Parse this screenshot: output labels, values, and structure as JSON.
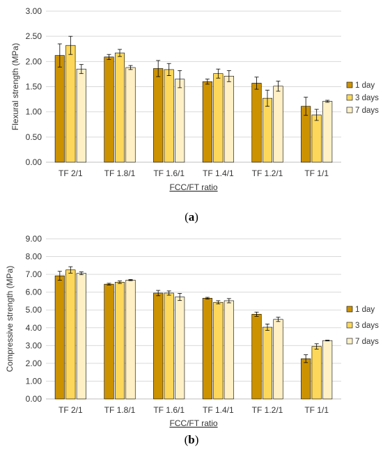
{
  "colors": {
    "day1": "#cc9200",
    "day3": "#fcd75a",
    "day7": "#fff0c6",
    "gridline": "#d9d9d9",
    "error": "#000000"
  },
  "chart_data": [
    {
      "type": "bar",
      "panel": "(a)",
      "panel_letter": "a",
      "ylabel": "Flexural strength (MPa)",
      "xlabel": "FCC/FT ratio",
      "ylim": [
        0,
        3.0
      ],
      "yticks": [
        "0.00",
        "0.50",
        "1.00",
        "1.50",
        "2.00",
        "2.50",
        "3.00"
      ],
      "grid": true,
      "legend_position": "right",
      "categories": [
        "TF 2/1",
        "TF 1.8/1",
        "TF 1.6/1",
        "TF 1.4/1",
        "TF 1.2/1",
        "TF 1/1"
      ],
      "series": [
        {
          "name": "1 day",
          "color_key": "day1",
          "values": [
            2.12,
            2.09,
            1.86,
            1.6,
            1.57,
            1.11
          ],
          "errors": [
            0.23,
            0.05,
            0.16,
            0.05,
            0.12,
            0.18
          ]
        },
        {
          "name": "3 days",
          "color_key": "day3",
          "values": [
            2.32,
            2.17,
            1.84,
            1.76,
            1.27,
            0.94
          ],
          "errors": [
            0.18,
            0.07,
            0.12,
            0.09,
            0.16,
            0.11
          ]
        },
        {
          "name": "7 days",
          "color_key": "day7",
          "values": [
            1.85,
            1.88,
            1.65,
            1.71,
            1.51,
            1.21
          ],
          "errors": [
            0.09,
            0.04,
            0.17,
            0.11,
            0.1,
            0.02
          ]
        }
      ]
    },
    {
      "type": "bar",
      "panel": "(b)",
      "panel_letter": "b",
      "ylabel": "Compressive strength (MPa)",
      "xlabel": "FCC/FT ratio",
      "ylim": [
        0,
        9.0
      ],
      "yticks": [
        "0.00",
        "1.00",
        "2.00",
        "3.00",
        "4.00",
        "5.00",
        "6.00",
        "7.00",
        "8.00",
        "9.00"
      ],
      "grid": true,
      "legend_position": "right",
      "categories": [
        "TF 2/1",
        "TF 1.8/1",
        "TF 1.6/1",
        "TF 1.4/1",
        "TF 1.2/1",
        "TF 1/1"
      ],
      "series": [
        {
          "name": "1 day",
          "color_key": "day1",
          "values": [
            6.92,
            6.45,
            5.95,
            5.66,
            4.76,
            2.26
          ],
          "errors": [
            0.25,
            0.05,
            0.15,
            0.05,
            0.12,
            0.22
          ]
        },
        {
          "name": "3 days",
          "color_key": "day3",
          "values": [
            7.25,
            6.56,
            5.95,
            5.43,
            4.03,
            2.95
          ],
          "errors": [
            0.18,
            0.07,
            0.12,
            0.09,
            0.18,
            0.15
          ]
        },
        {
          "name": "7 days",
          "color_key": "day7",
          "values": [
            7.06,
            6.68,
            5.73,
            5.52,
            4.47,
            3.28
          ],
          "errors": [
            0.08,
            0.03,
            0.2,
            0.12,
            0.12,
            0.02
          ]
        }
      ]
    }
  ]
}
